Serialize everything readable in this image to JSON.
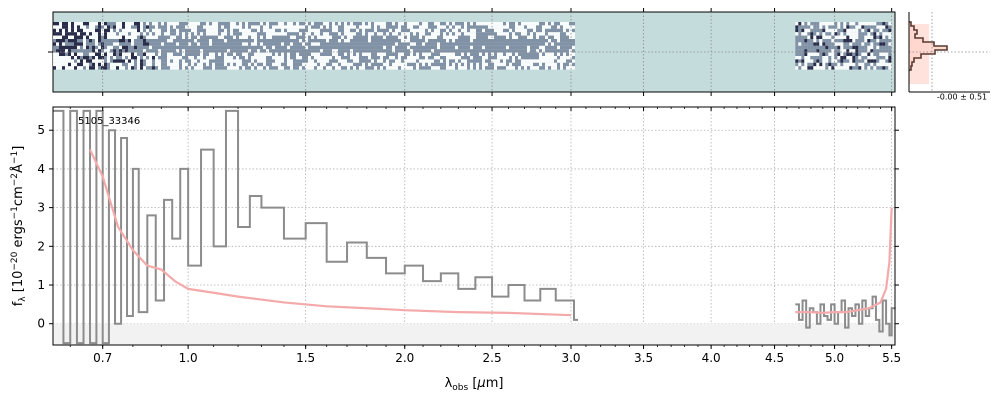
{
  "chart_data": [
    {
      "type": "image",
      "description_of_panel": "2D spectrum strip",
      "x_domain": [
        0.55,
        5.53
      ],
      "colors": {
        "background": "#c4dcdc",
        "dark": "#1a1a3a",
        "light": "#ffffff"
      },
      "coverage": [
        [
          0.55,
          3.03
        ],
        [
          4.67,
          5.5
        ]
      ]
    },
    {
      "type": "histogram",
      "xlabel": "-0.00 ± 0.51",
      "colors": {
        "fill": "#ffd6cc",
        "line": "#5a3a30"
      }
    },
    {
      "type": "line",
      "label": "5105_33346",
      "xlabel": "λobs [μm]",
      "ylabel": "fλ [10⁻²⁰ ergs⁻¹cm⁻²Å⁻¹]",
      "xscale": "sqrt-like",
      "xlim": [
        0.55,
        5.53
      ],
      "ylim": [
        -0.55,
        5.6
      ],
      "xticks": [
        {
          "v": 0.7,
          "label": "0.7"
        },
        {
          "v": 1.0,
          "label": "1.0"
        },
        {
          "v": 1.5,
          "label": "1.5"
        },
        {
          "v": 2.0,
          "label": "2.0"
        },
        {
          "v": 2.5,
          "label": "2.5"
        },
        {
          "v": 3.0,
          "label": "3.0"
        },
        {
          "v": 3.5,
          "label": "3.5"
        },
        {
          "v": 4.0,
          "label": "4.0"
        },
        {
          "v": 4.5,
          "label": "4.5"
        },
        {
          "v": 5.0,
          "label": "5.0"
        },
        {
          "v": 5.5,
          "label": "5.5"
        }
      ],
      "yticks": [
        {
          "v": 0,
          "label": "0"
        },
        {
          "v": 1,
          "label": "1"
        },
        {
          "v": 2,
          "label": "2"
        },
        {
          "v": 3,
          "label": "3"
        },
        {
          "v": 4,
          "label": "4"
        },
        {
          "v": 5,
          "label": "5"
        }
      ],
      "grid": true,
      "series": [
        {
          "style": "steps",
          "color": "#8c8c8c",
          "x": [
            0.55,
            0.58,
            0.6,
            0.62,
            0.64,
            0.66,
            0.68,
            0.7,
            0.72,
            0.74,
            0.76,
            0.78,
            0.8,
            0.82,
            0.85,
            0.88,
            0.91,
            0.94,
            0.97,
            1.0,
            1.05,
            1.1,
            1.15,
            1.2,
            1.25,
            1.3,
            1.4,
            1.5,
            1.6,
            1.7,
            1.8,
            1.9,
            2.0,
            2.1,
            2.2,
            2.3,
            2.4,
            2.5,
            2.6,
            2.7,
            2.8,
            2.9,
            3.02
          ],
          "y": [
            5.5,
            -0.5,
            5.5,
            -0.5,
            5.5,
            -0.5,
            5.5,
            -0.5,
            5.0,
            0.0,
            4.8,
            0.2,
            4.0,
            0.3,
            2.8,
            0.6,
            3.2,
            2.2,
            4.0,
            1.5,
            4.5,
            2.0,
            5.5,
            2.5,
            3.3,
            3.0,
            2.2,
            2.6,
            1.6,
            2.1,
            1.7,
            1.3,
            1.5,
            1.1,
            1.3,
            0.9,
            1.2,
            0.7,
            1.0,
            0.6,
            0.9,
            0.6,
            0.1
          ]
        },
        {
          "style": "steps",
          "color": "#8c8c8c",
          "x": [
            4.67,
            4.7,
            4.73,
            4.76,
            4.79,
            4.82,
            4.85,
            4.88,
            4.91,
            4.94,
            4.97,
            5.0,
            5.03,
            5.06,
            5.09,
            5.12,
            5.15,
            5.18,
            5.21,
            5.24,
            5.27,
            5.3,
            5.33,
            5.36,
            5.39,
            5.42,
            5.45,
            5.48,
            5.5
          ],
          "y": [
            0.5,
            0.1,
            0.6,
            -0.1,
            0.4,
            0.3,
            0.0,
            0.5,
            0.2,
            0.1,
            0.5,
            0.0,
            0.3,
            0.6,
            -0.1,
            0.4,
            0.2,
            0.5,
            0.0,
            0.6,
            0.2,
            0.4,
            0.7,
            0.1,
            -0.2,
            0.6,
            0.0,
            -0.3,
            0.4
          ]
        },
        {
          "style": "line",
          "color": "#f4aaaa",
          "x": [
            0.66,
            0.7,
            0.75,
            0.8,
            0.85,
            0.9,
            0.95,
            1.0,
            1.1,
            1.2,
            1.4,
            1.6,
            1.8,
            2.0,
            2.3,
            2.6,
            3.0
          ],
          "y": [
            4.5,
            3.8,
            2.5,
            1.9,
            1.5,
            1.4,
            1.1,
            0.9,
            0.8,
            0.7,
            0.55,
            0.45,
            0.4,
            0.35,
            0.3,
            0.28,
            0.22
          ]
        },
        {
          "style": "line",
          "color": "#f4aaaa",
          "x": [
            4.67,
            4.8,
            4.9,
            5.0,
            5.1,
            5.2,
            5.3,
            5.4,
            5.45,
            5.48,
            5.5
          ],
          "y": [
            0.3,
            0.3,
            0.28,
            0.3,
            0.3,
            0.35,
            0.4,
            0.55,
            0.9,
            1.6,
            3.0
          ]
        }
      ]
    }
  ]
}
